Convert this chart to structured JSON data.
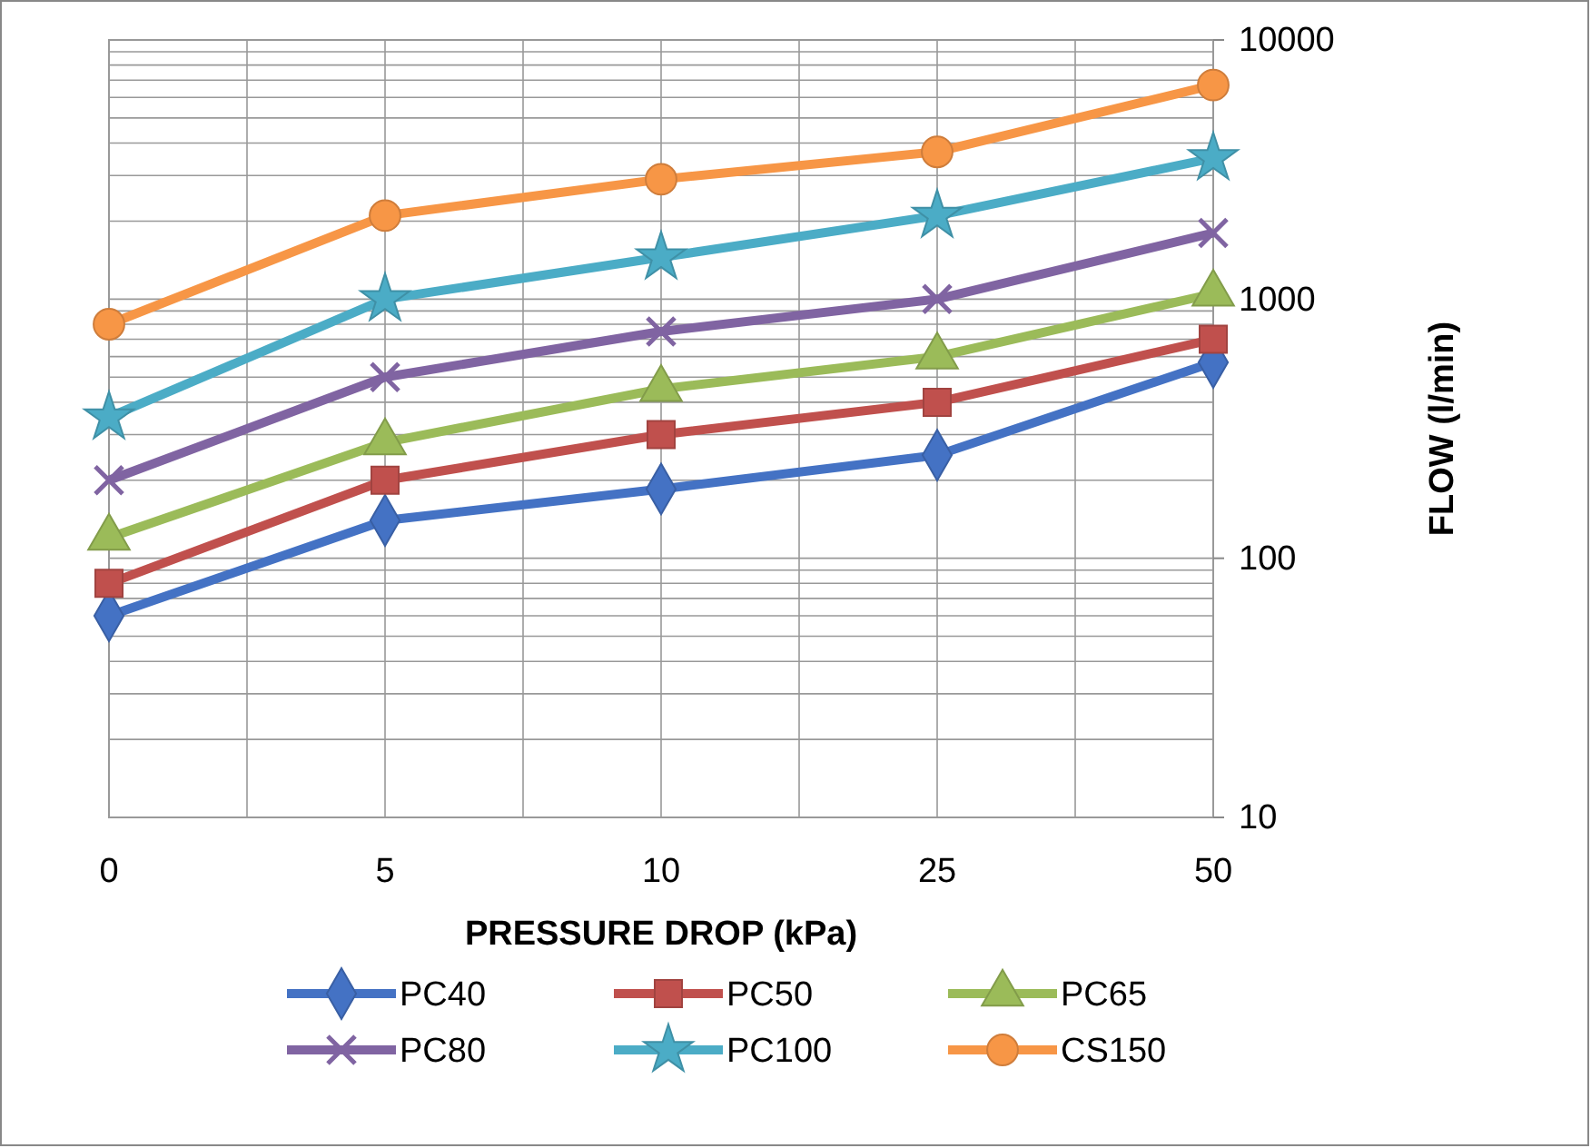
{
  "chart_data": {
    "type": "line",
    "xlabel": "PRESSURE DROP (kPa)",
    "ylabel": "FLOW (l/min)",
    "categories": [
      "0",
      "5",
      "10",
      "25",
      "50"
    ],
    "log": true,
    "ylim": [
      10,
      10000
    ],
    "yticks": [
      10,
      {
        "value": 20,
        "label": null
      },
      {
        "value": 30,
        "label": null
      },
      {
        "value": 40,
        "label": null
      },
      {
        "value": 50,
        "label": null
      },
      {
        "value": 60,
        "label": null
      },
      {
        "value": 70,
        "label": null
      },
      {
        "value": 80,
        "label": null
      },
      {
        "value": 90,
        "label": null
      },
      100,
      {
        "value": 200,
        "label": null
      },
      {
        "value": 300,
        "label": null
      },
      {
        "value": 400,
        "label": null
      },
      {
        "value": 500,
        "label": null
      },
      {
        "value": 600,
        "label": null
      },
      {
        "value": 700,
        "label": null
      },
      {
        "value": 800,
        "label": null
      },
      {
        "value": 900,
        "label": null
      },
      1000,
      {
        "value": 2000,
        "label": null
      },
      {
        "value": 3000,
        "label": null
      },
      {
        "value": 4000,
        "label": null
      },
      {
        "value": 5000,
        "label": null
      },
      {
        "value": 6000,
        "label": null
      },
      {
        "value": 7000,
        "label": null
      },
      {
        "value": 8000,
        "label": null
      },
      {
        "value": 9000,
        "label": null
      },
      10000
    ],
    "grid": true,
    "legend": "bottom",
    "line_style": "solid",
    "series": [
      {
        "name": "PC40",
        "color": "#4472c4",
        "marker": "diamond",
        "values": [
          60,
          140,
          185,
          250,
          570
        ]
      },
      {
        "name": "PC50",
        "color": "#c0504d",
        "marker": "square",
        "values": [
          80,
          200,
          300,
          400,
          700
        ]
      },
      {
        "name": "PC65",
        "color": "#9bbb59",
        "marker": "triangle",
        "values": [
          120,
          280,
          450,
          600,
          1050
        ]
      },
      {
        "name": "PC80",
        "color": "#8064a2",
        "marker": "cross",
        "values": [
          200,
          500,
          750,
          1000,
          1800
        ]
      },
      {
        "name": "PC100",
        "color": "#4bacc6",
        "marker": "star",
        "values": [
          350,
          1000,
          1450,
          2100,
          3500
        ]
      },
      {
        "name": "CS150",
        "color": "#f79646",
        "marker": "circle",
        "values": [
          800,
          2100,
          2900,
          3700,
          6700
        ]
      }
    ]
  }
}
